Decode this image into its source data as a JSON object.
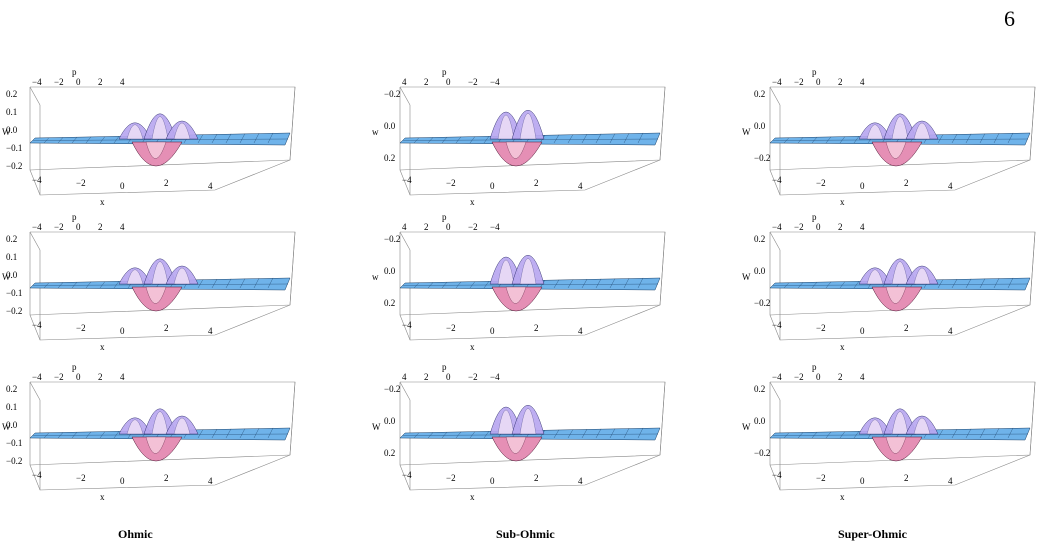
{
  "page_number": "6",
  "columns": [
    {
      "label": "Ohmic",
      "top_ticks": [
        "−4",
        "−2",
        "0",
        "2",
        "4"
      ],
      "w_ticks": [
        "0.2",
        "0.1",
        "0.0",
        "−0.1",
        "−0.2"
      ],
      "x_ticks": [
        "−4",
        "−2",
        "0",
        "2",
        "4"
      ]
    },
    {
      "label": "Sub-Ohmic",
      "top_ticks": [
        "4",
        "2",
        "0",
        "−2",
        "−4"
      ],
      "w_ticks": [
        "−0.2",
        "0.0",
        "0.2"
      ],
      "x_ticks": [
        "−4",
        "−2",
        "0",
        "2",
        "4"
      ]
    },
    {
      "label": "Super-Ohmic",
      "top_ticks": [
        "−4",
        "−2",
        "0",
        "2",
        "4"
      ],
      "w_ticks": [
        "0.2",
        "0.0",
        "−0.2"
      ],
      "x_ticks": [
        "−4",
        "−2",
        "0",
        "2",
        "4"
      ]
    }
  ],
  "axis_names": {
    "p": "p",
    "w_upper": "W",
    "w_lower": "w",
    "x": "x"
  }
}
